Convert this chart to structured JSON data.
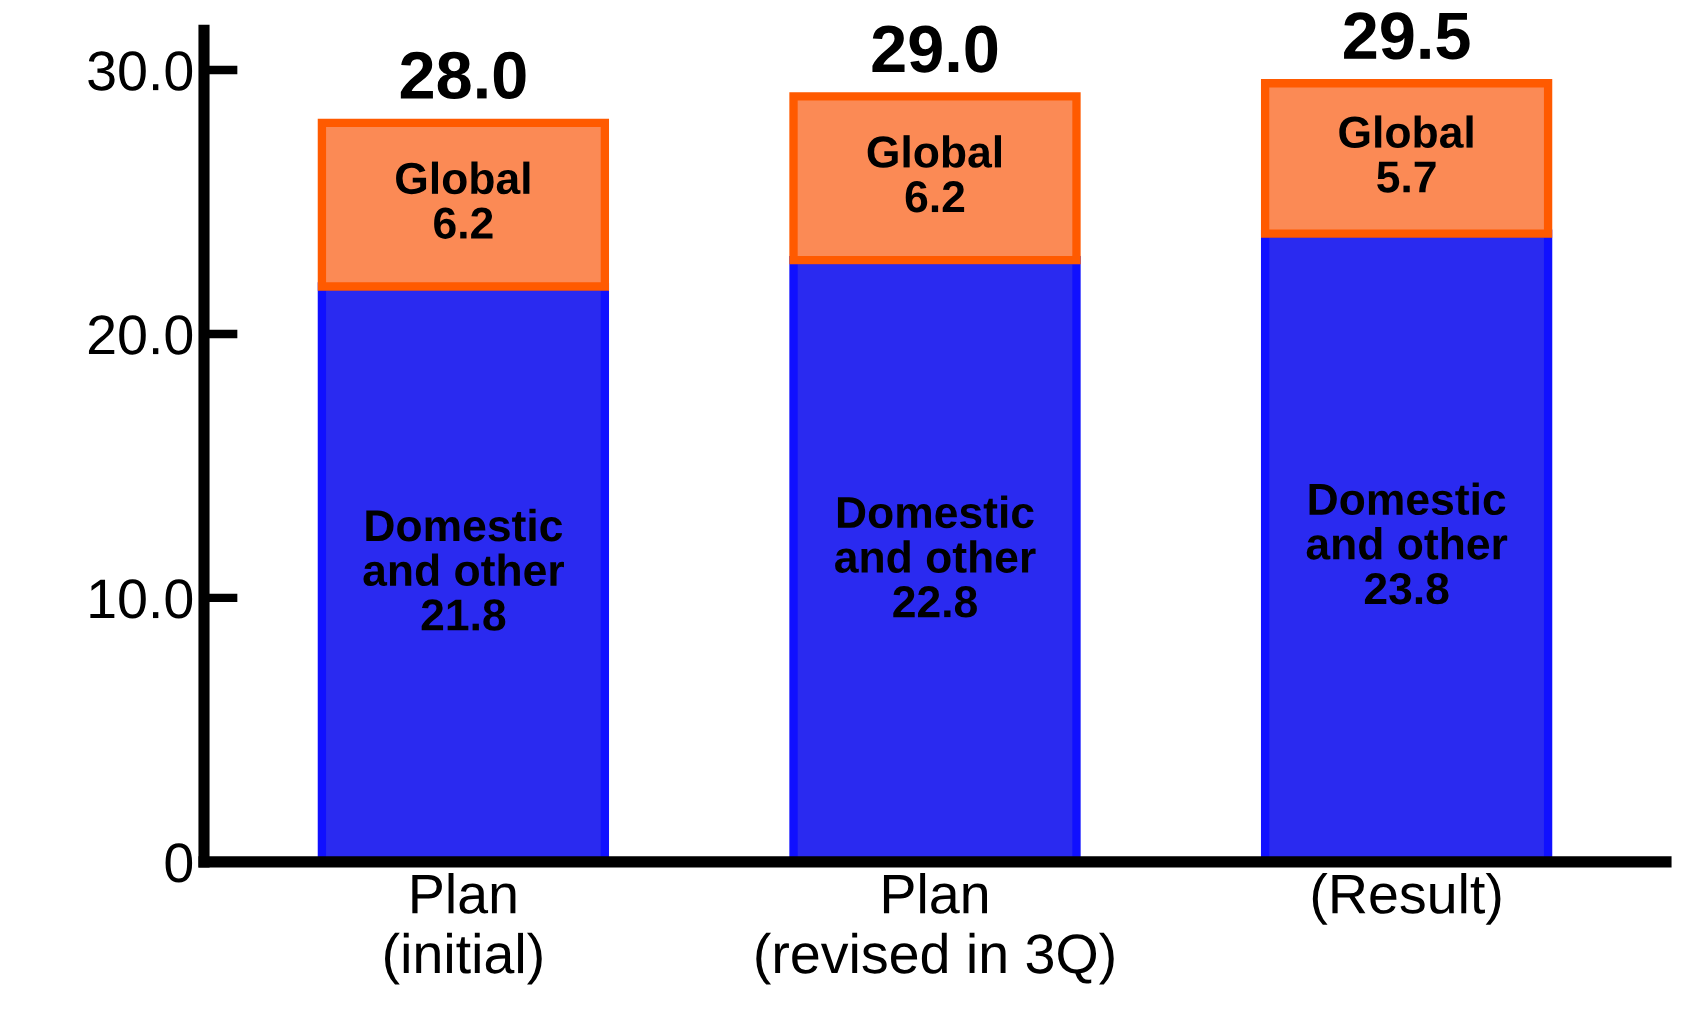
{
  "chart_data": {
    "type": "bar",
    "stacked": true,
    "categories": [
      "Plan\n(initial)",
      "Plan\n(revised in 3Q)",
      "(Result)"
    ],
    "series": [
      {
        "name": "Domestic\nand other",
        "color": "#2a2af0",
        "values": [
          21.8,
          22.8,
          23.8
        ],
        "value_labels": [
          "21.8",
          "22.8",
          "23.8"
        ]
      },
      {
        "name": "Global",
        "color": "#fb8a55",
        "values": [
          6.2,
          6.2,
          5.7
        ],
        "value_labels": [
          "6.2",
          "6.2",
          "5.7"
        ]
      }
    ],
    "totals": [
      "28.0",
      "29.0",
      "29.5"
    ],
    "ylim": [
      0,
      31.5
    ],
    "yticks": [
      {
        "value": 0,
        "label": "0"
      },
      {
        "value": 10,
        "label": "10.0"
      },
      {
        "value": 20,
        "label": "20.0"
      },
      {
        "value": 30,
        "label": "30.0"
      }
    ],
    "grid": false,
    "legend": false
  }
}
